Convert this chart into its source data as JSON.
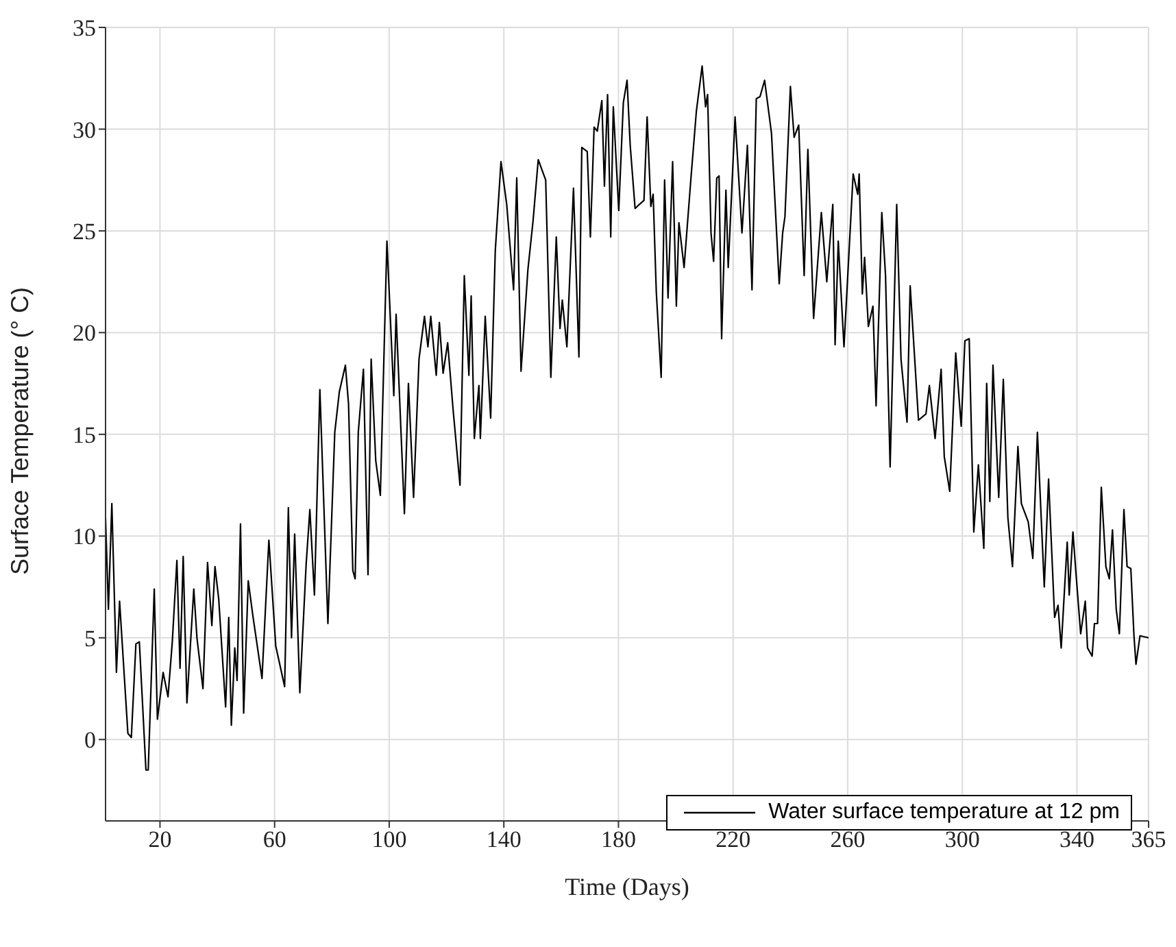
{
  "chart_data": {
    "type": "line",
    "xlabel": "Time (Days)",
    "ylabel": "Surface Temperature (° C)",
    "xlim": [
      1,
      365
    ],
    "xticks": [
      20,
      60,
      100,
      140,
      180,
      220,
      260,
      300,
      340,
      365
    ],
    "ylim": [
      -4,
      35
    ],
    "yticks": [
      0,
      5,
      10,
      15,
      20,
      25,
      30,
      35
    ],
    "grid": true,
    "legend": "bottom right",
    "marker": "none",
    "line_style": "solid",
    "series": [
      {
        "name": "Water surface temperature at 12 pm",
        "color": "#000000",
        "x": [
          1,
          2,
          3.2,
          4.8,
          5.9,
          8.8,
          10,
          11.6,
          12.8,
          15.1,
          15.9,
          18,
          19.1,
          21.1,
          22.8,
          24.3,
          25.9,
          27,
          28.1,
          29.4,
          31.8,
          32.9,
          35,
          36.6,
          38.1,
          39.2,
          40.5,
          42.9,
          44,
          44.9,
          46.1,
          46.9,
          48.1,
          49.2,
          50.8,
          52.4,
          55.6,
          58,
          60.4,
          63.5,
          64.8,
          65.9,
          67,
          68.8,
          71,
          72.3,
          73.9,
          75.8,
          78.6,
          81,
          82.6,
          84.7,
          85.8,
          87.3,
          88.1,
          89.2,
          91,
          92.6,
          93.7,
          95.3,
          96.9,
          99.2,
          101.6,
          102.4,
          105.3,
          106.7,
          108.5,
          110.4,
          112.3,
          113.5,
          114.5,
          116.4,
          117.5,
          118.8,
          120.4,
          122.3,
          124.7,
          126.2,
          127.8,
          128.6,
          129.7,
          131.3,
          131.8,
          133.5,
          135.4,
          137,
          139,
          141,
          143.4,
          144.5,
          146,
          148.4,
          150.2,
          152,
          154.6,
          156.4,
          158.3,
          159.6,
          160.4,
          162,
          164.3,
          166.2,
          167.2,
          169.1,
          170.2,
          171.5,
          172.6,
          174.2,
          175.1,
          176.2,
          177.3,
          178.2,
          180.1,
          181.7,
          183,
          184.1,
          185.8,
          187.3,
          188.9,
          190,
          191.3,
          192.1,
          193.2,
          194.9,
          196.1,
          197.3,
          198.9,
          200.2,
          201.1,
          202.9,
          205.3,
          207.2,
          209.2,
          210.4,
          211.1,
          212.3,
          213.2,
          214.3,
          215.1,
          216,
          217.5,
          218.3,
          220.7,
          223.1,
          225,
          226.6,
          228.1,
          229.4,
          231,
          233.4,
          236.1,
          237.3,
          238.1,
          240,
          241.3,
          242.9,
          244.8,
          246.1,
          248.1,
          250.8,
          252.7,
          254.8,
          255.6,
          256.7,
          258.7,
          261.9,
          263.5,
          264,
          265.1,
          265.9,
          267.2,
          268.8,
          269.9,
          271.9,
          273.2,
          274.8,
          277.1,
          278.6,
          280.7,
          281.8,
          284.7,
          287.3,
          288.5,
          290.5,
          292.6,
          293.7,
          295.6,
          297.7,
          299.6,
          300.9,
          302.4,
          304,
          305.6,
          307.5,
          308.5,
          309.6,
          310.7,
          312.7,
          314.3,
          315.9,
          317.5,
          319.4,
          320.6,
          323,
          324.6,
          326.2,
          328.6,
          330.1,
          332.2,
          333.4,
          334.5,
          336.6,
          337.3,
          338.6,
          339.7,
          341.3,
          342.9,
          343.7,
          345.3,
          346.1,
          347.2,
          348.5,
          350.1,
          351.3,
          352.4,
          353.7,
          354.8,
          356.4,
          357.5,
          358.8,
          359.9,
          360.6,
          362,
          365
        ],
        "values": [
          10.9,
          6.4,
          11.6,
          3.3,
          6.8,
          0.3,
          0.1,
          4.7,
          4.8,
          -1.5,
          -1.5,
          7.4,
          1.0,
          3.3,
          2.1,
          4.8,
          8.8,
          3.5,
          9.0,
          1.8,
          7.4,
          5.0,
          2.5,
          8.7,
          5.6,
          8.5,
          6.9,
          1.6,
          6.0,
          0.7,
          4.5,
          2.9,
          10.6,
          1.3,
          7.8,
          6.1,
          3.0,
          9.8,
          4.6,
          2.6,
          11.4,
          5.0,
          10.1,
          2.3,
          8.6,
          11.3,
          7.1,
          17.2,
          5.7,
          15.1,
          17.1,
          18.4,
          16.5,
          8.3,
          7.9,
          15.1,
          18.2,
          8.1,
          18.7,
          13.7,
          12.0,
          24.5,
          16.9,
          20.9,
          11.1,
          17.5,
          11.9,
          18.7,
          20.8,
          19.3,
          20.8,
          17.9,
          20.5,
          18.0,
          19.5,
          16.2,
          12.5,
          22.8,
          17.9,
          21.8,
          14.8,
          17.4,
          14.8,
          20.8,
          15.8,
          24.0,
          28.4,
          26.3,
          22.1,
          27.6,
          18.1,
          23.1,
          25.5,
          28.5,
          27.5,
          17.8,
          24.7,
          20.2,
          21.6,
          19.3,
          27.1,
          18.8,
          29.1,
          28.9,
          24.7,
          30.1,
          29.9,
          31.4,
          27.2,
          31.7,
          24.7,
          31.1,
          26.0,
          31.3,
          32.4,
          29.2,
          26.1,
          26.3,
          26.5,
          30.6,
          26.2,
          26.8,
          22.0,
          17.8,
          27.5,
          21.7,
          28.4,
          21.3,
          25.4,
          23.2,
          27.6,
          30.9,
          33.1,
          31.1,
          31.7,
          24.9,
          23.5,
          27.6,
          27.7,
          19.7,
          27.0,
          23.2,
          30.6,
          24.9,
          29.2,
          22.1,
          31.5,
          31.6,
          32.4,
          29.8,
          22.4,
          24.9,
          25.7,
          32.1,
          29.6,
          30.2,
          22.8,
          29.0,
          20.7,
          25.9,
          22.5,
          26.3,
          19.4,
          24.5,
          19.3,
          27.8,
          26.8,
          27.8,
          21.9,
          23.7,
          20.3,
          21.3,
          16.4,
          25.9,
          22.8,
          13.4,
          26.3,
          18.7,
          15.6,
          22.3,
          15.7,
          16.0,
          17.4,
          14.8,
          18.2,
          13.9,
          12.2,
          19.0,
          15.4,
          19.6,
          19.7,
          10.2,
          13.5,
          9.4,
          17.5,
          11.7,
          18.4,
          11.9,
          17.7,
          10.9,
          8.5,
          14.4,
          11.6,
          10.7,
          8.9,
          15.1,
          7.5,
          12.8,
          6.0,
          6.6,
          4.5,
          9.7,
          7.1,
          10.2,
          8.1,
          5.2,
          6.8,
          4.5,
          4.1,
          5.7,
          5.7,
          12.4,
          8.5,
          7.9,
          10.3,
          6.4,
          5.2,
          11.3,
          8.5,
          8.4,
          5.1,
          3.7,
          5.1,
          5.0
        ]
      }
    ]
  }
}
